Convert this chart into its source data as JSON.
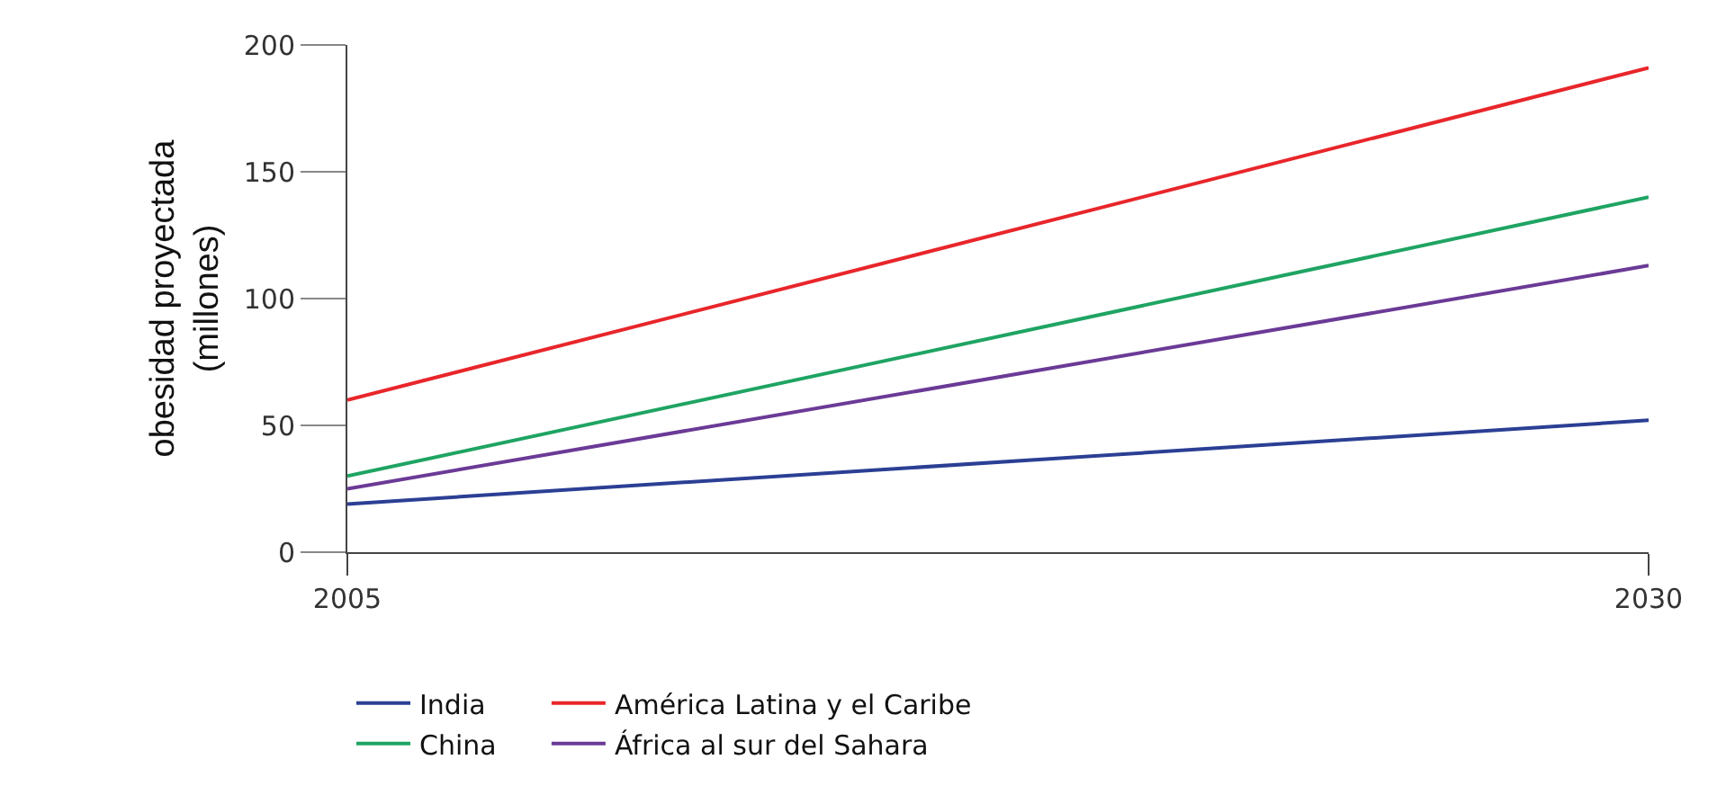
{
  "chart_data": {
    "type": "line",
    "ylabel": "obesidad proyectada\n(millones)",
    "x": [
      2005,
      2030
    ],
    "xlim": [
      2005,
      2030
    ],
    "xticks": [
      2005,
      2030
    ],
    "ylim": [
      0,
      200
    ],
    "yticks": [
      0,
      50,
      100,
      150,
      200
    ],
    "grid": false,
    "legend": "bottom",
    "marker": "none",
    "line_style": "solid",
    "series": [
      {
        "name": "India",
        "color": "#2b3f94",
        "values": [
          19,
          52
        ]
      },
      {
        "name": "América Latina y el Caribe",
        "color": "#e8262b",
        "values": [
          60,
          191
        ]
      },
      {
        "name": "China",
        "color": "#1fa463",
        "values": [
          30,
          140
        ]
      },
      {
        "name": "África al sur del Sahara",
        "color": "#6b3a96",
        "values": [
          25,
          113
        ]
      }
    ]
  }
}
